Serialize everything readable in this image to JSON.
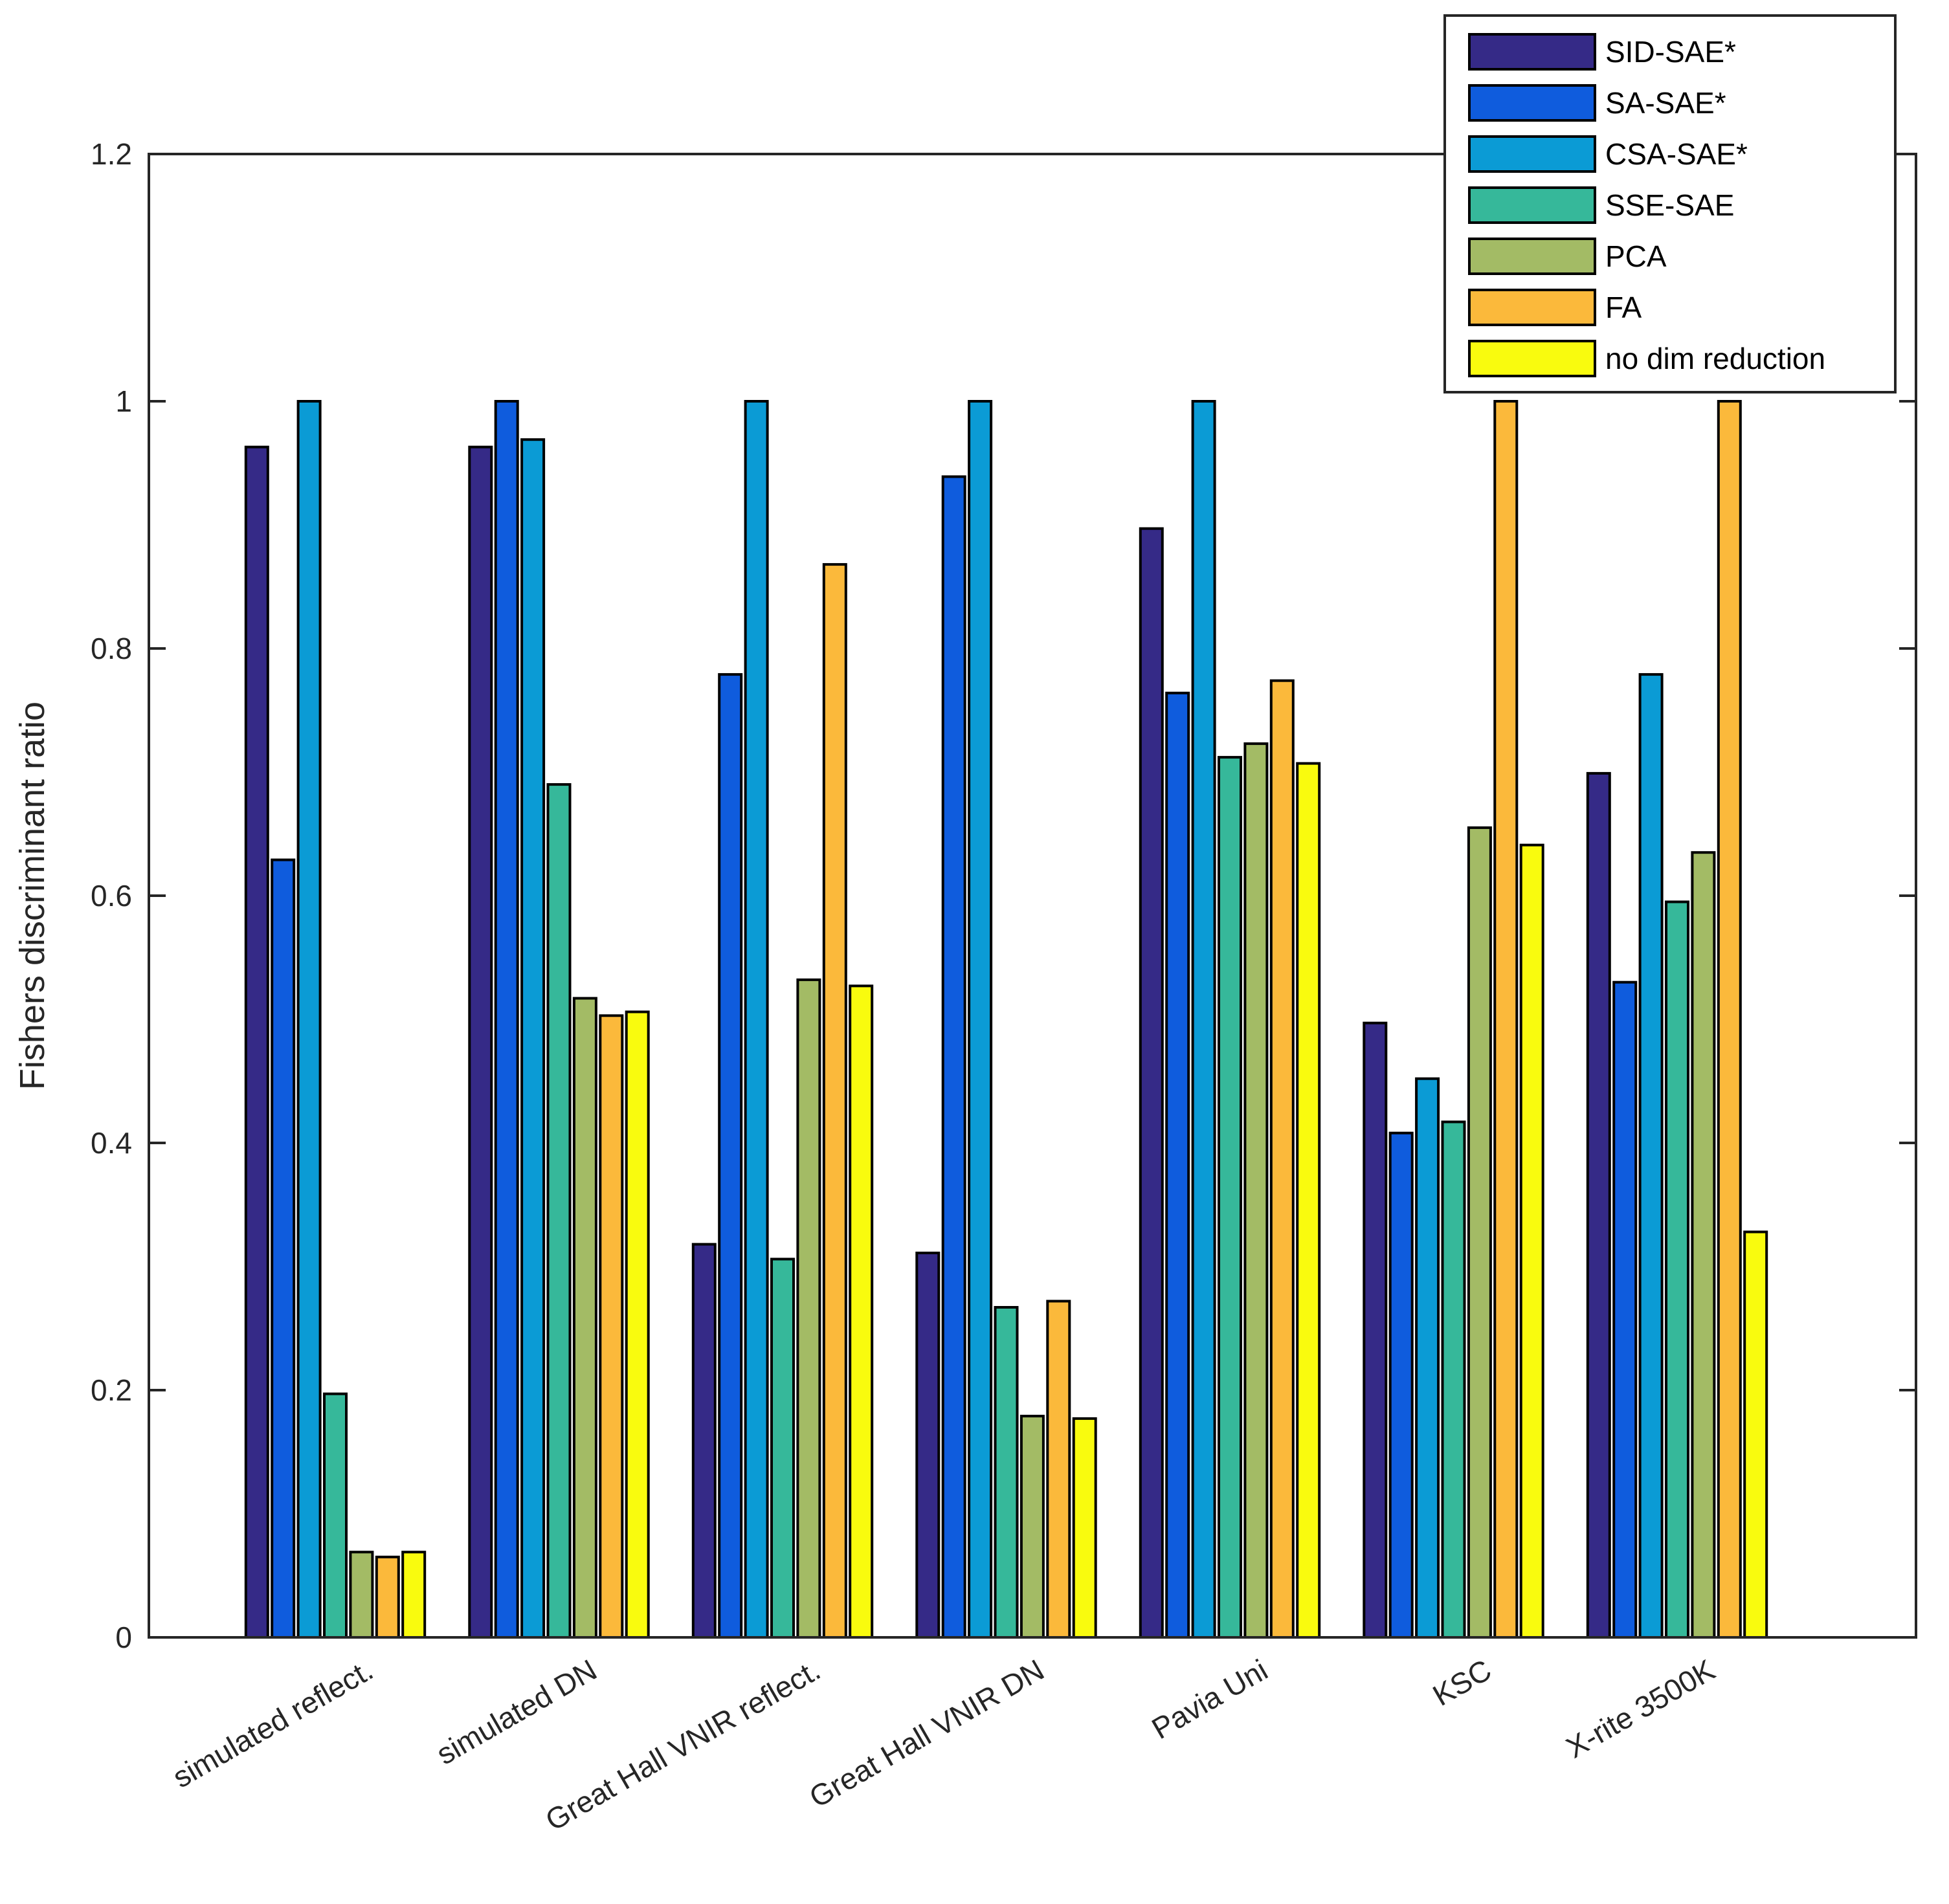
{
  "chart_data": {
    "type": "bar",
    "title": "",
    "xlabel": "",
    "ylabel": "Fishers discriminant ratio",
    "ylim": [
      0,
      1.2
    ],
    "yticks": [
      0,
      0.2,
      0.4,
      0.6,
      0.8,
      1,
      1.2
    ],
    "ytick_labels": [
      "0",
      "0.2",
      "0.4",
      "0.6",
      "0.8",
      "1",
      "1.2"
    ],
    "grid": false,
    "legend_position": "top-right",
    "categories": [
      "simulated reflect.",
      "simulated DN",
      "Great Hall VNIR reflect.",
      "Great Hall VNIR DN",
      "Pavia Uni",
      "KSC",
      "X-rite 3500K"
    ],
    "series": [
      {
        "name": "SID-SAE*",
        "color": "#352a87",
        "values": [
          0.963,
          0.963,
          0.318,
          0.311,
          0.897,
          0.497,
          0.699
        ]
      },
      {
        "name": "SA-SAE*",
        "color": "#0f5cdd",
        "values": [
          0.629,
          1.0,
          0.779,
          0.939,
          0.764,
          0.408,
          0.53
        ]
      },
      {
        "name": "CSA-SAE*",
        "color": "#0b9bd5",
        "values": [
          1.0,
          0.969,
          1.0,
          1.0,
          1.0,
          0.452,
          0.779
        ]
      },
      {
        "name": "SSE-SAE",
        "color": "#36b89a",
        "values": [
          0.197,
          0.69,
          0.306,
          0.267,
          0.712,
          0.417,
          0.595
        ]
      },
      {
        "name": "PCA",
        "color": "#a3bb65",
        "values": [
          0.069,
          0.517,
          0.532,
          0.179,
          0.723,
          0.655,
          0.635
        ]
      },
      {
        "name": "FA",
        "color": "#fbb93b",
        "values": [
          0.065,
          0.503,
          0.868,
          0.272,
          0.774,
          1.0,
          1.0
        ]
      },
      {
        "name": "no dim reduction",
        "color": "#f9fb0e",
        "values": [
          0.069,
          0.506,
          0.527,
          0.177,
          0.707,
          0.641,
          0.328
        ]
      }
    ]
  }
}
